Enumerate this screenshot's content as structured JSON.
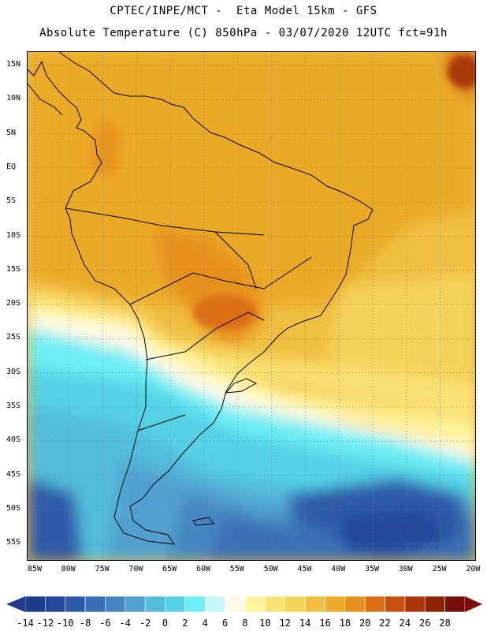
{
  "header": {
    "line1": "CPTEC/INPE/MCT -  Eta Model 15km - GFS",
    "line2": "Absolute Temperature (C) 850hPa - 03/07/2020 12UTC fct=91h"
  },
  "map": {
    "lat_labels": [
      "15N",
      "10N",
      "5N",
      "EQ",
      "5S",
      "10S",
      "15S",
      "20S",
      "25S",
      "30S",
      "35S",
      "40S",
      "45S",
      "50S",
      "55S"
    ],
    "lon_labels": [
      "85W",
      "80W",
      "75W",
      "70W",
      "65W",
      "60W",
      "55W",
      "50W",
      "45W",
      "40W",
      "35W",
      "30W",
      "25W",
      "20W"
    ],
    "grid": "dotted",
    "coastline_color": "#000000"
  },
  "colorbar": {
    "ticks": [
      "-14",
      "-12",
      "-10",
      "-8",
      "-6",
      "-4",
      "-2",
      "0",
      "2",
      "4",
      "6",
      "8",
      "10",
      "12",
      "14",
      "16",
      "18",
      "20",
      "22",
      "24",
      "26",
      "28"
    ],
    "colors": [
      "#1e3c8c",
      "#23479b",
      "#2d5aa8",
      "#3a6fb5",
      "#4686c2",
      "#51a0cf",
      "#53bcdc",
      "#55d2e6",
      "#6eeef5",
      "#c8f5fa",
      "#fffae6",
      "#fff59b",
      "#fae173",
      "#f5d25a",
      "#f0bf41",
      "#ebaa28",
      "#e6911e",
      "#dc6e14",
      "#c8500f",
      "#aa370a",
      "#8c2305",
      "#780f0f"
    ]
  }
}
